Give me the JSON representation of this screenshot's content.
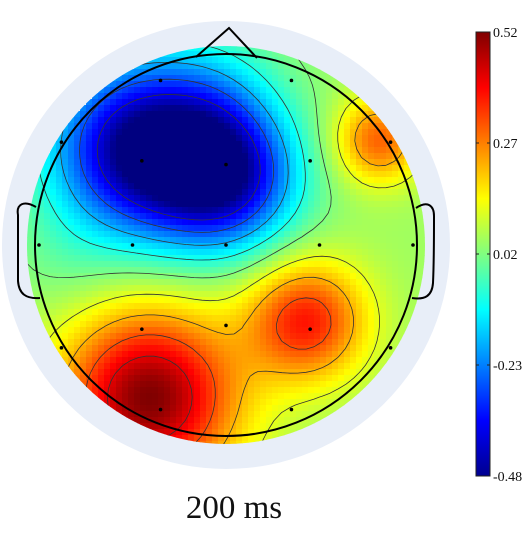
{
  "chart_data": {
    "type": "heatmap",
    "title": "",
    "caption": "200 ms",
    "colormap": "jet",
    "colorbar": {
      "min": -0.48,
      "max": 0.52,
      "ticks": [
        {
          "value": 0.52,
          "label": "0.52"
        },
        {
          "value": 0.27,
          "label": "0.27"
        },
        {
          "value": 0.02,
          "label": "0.02"
        },
        {
          "value": -0.23,
          "label": "-0.23"
        },
        {
          "value": -0.48,
          "label": "-0.48"
        }
      ]
    },
    "contour_levels": [
      -0.38,
      -0.28,
      -0.18,
      -0.08,
      0.02,
      0.12,
      0.22,
      0.32,
      0.42
    ],
    "sources": [
      {
        "x": -0.45,
        "y": 0.5,
        "value": -0.48,
        "sigma": 0.32
      },
      {
        "x": 0.0,
        "y": 0.35,
        "value": -0.38,
        "sigma": 0.26
      },
      {
        "x": -0.05,
        "y": 0.75,
        "value": -0.05,
        "sigma": 0.25
      },
      {
        "x": -0.4,
        "y": -0.8,
        "value": 0.52,
        "sigma": 0.32
      },
      {
        "x": 0.42,
        "y": -0.4,
        "value": 0.37,
        "sigma": 0.22
      },
      {
        "x": 0.8,
        "y": 0.55,
        "value": 0.3,
        "sigma": 0.16
      },
      {
        "x": 0.6,
        "y": 0.05,
        "value": 0.05,
        "sigma": 0.22
      },
      {
        "x": -0.85,
        "y": -0.1,
        "value": 0.02,
        "sigma": 0.2
      }
    ],
    "baseline": 0.05,
    "electrodes": [
      {
        "x": -0.35,
        "y": 0.88
      },
      {
        "x": 0.35,
        "y": 0.88
      },
      {
        "x": -0.88,
        "y": 0.55
      },
      {
        "x": -0.45,
        "y": 0.45
      },
      {
        "x": 0.0,
        "y": 0.43
      },
      {
        "x": 0.45,
        "y": 0.45
      },
      {
        "x": 0.88,
        "y": 0.55
      },
      {
        "x": -1.0,
        "y": 0.0
      },
      {
        "x": -0.5,
        "y": 0.0
      },
      {
        "x": 0.0,
        "y": 0.0
      },
      {
        "x": 0.5,
        "y": 0.0
      },
      {
        "x": 1.0,
        "y": 0.0
      },
      {
        "x": -0.88,
        "y": -0.55
      },
      {
        "x": -0.45,
        "y": -0.45
      },
      {
        "x": 0.0,
        "y": -0.43
      },
      {
        "x": 0.45,
        "y": -0.45
      },
      {
        "x": 0.88,
        "y": -0.55
      },
      {
        "x": -0.35,
        "y": -0.88
      },
      {
        "x": 0.35,
        "y": -0.88
      }
    ]
  },
  "colors": {
    "outer_ring": "#e8eef8",
    "head_outline": "#000000",
    "contour": "#333333"
  }
}
